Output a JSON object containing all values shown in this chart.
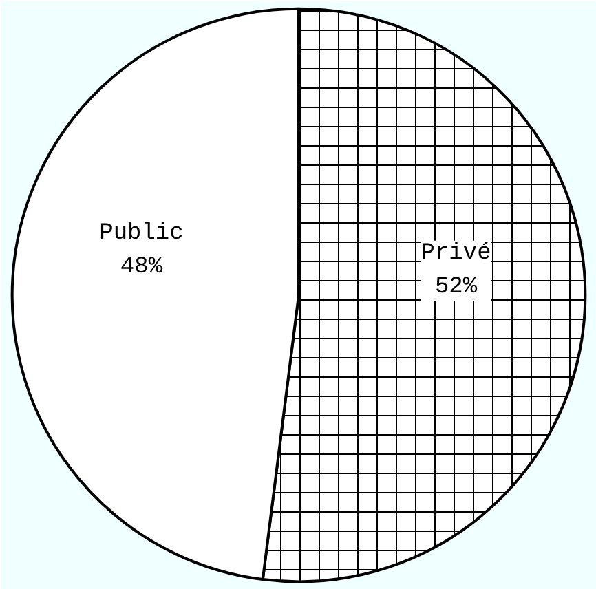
{
  "chart_data": {
    "type": "pie",
    "categories": [
      "Privé",
      "Public"
    ],
    "values": [
      52,
      48
    ],
    "colors": [
      "#ffffff",
      "#ffffff"
    ],
    "value_labels": [
      "52%",
      "48%"
    ]
  }
}
